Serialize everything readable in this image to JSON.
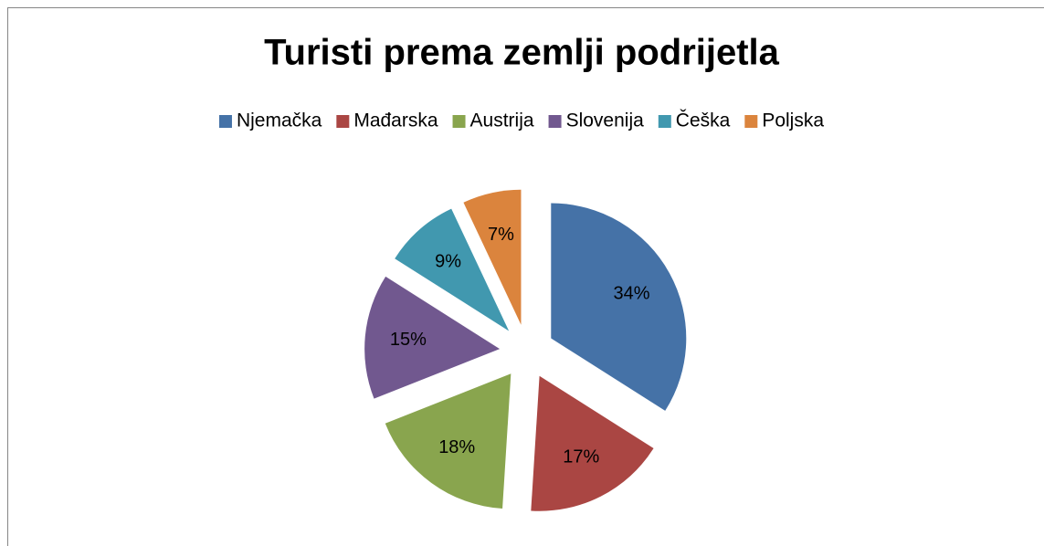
{
  "chart_data": {
    "type": "pie",
    "title": "Turisti prema zemlji podrijetla",
    "categories": [
      "Njemačka",
      "Mađarska",
      "Austrija",
      "Slovenija",
      "Češka",
      "Poljska"
    ],
    "values": [
      34,
      17,
      18,
      15,
      9,
      7
    ],
    "value_labels": [
      "34%",
      "17%",
      "18%",
      "15%",
      "9%",
      "7%"
    ],
    "colors": [
      "#4572a7",
      "#aa4643",
      "#89a54e",
      "#71588f",
      "#4198af",
      "#db843d"
    ],
    "legend": "top"
  }
}
